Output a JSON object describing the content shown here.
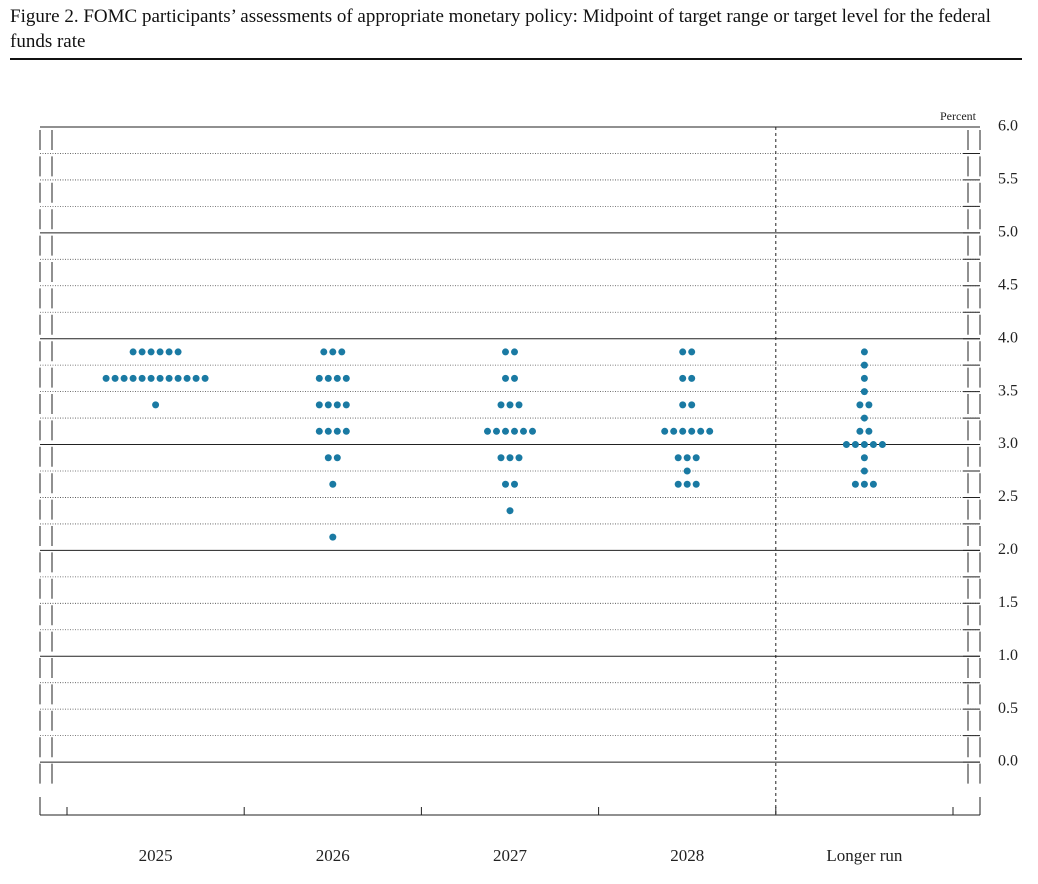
{
  "chart_data": {
    "type": "dot",
    "title": "Figure 2. FOMC participants’ assessments of appropriate monetary policy: Midpoint of target range or target level for the federal funds rate",
    "y_label": "Percent",
    "categories": [
      "2025",
      "2026",
      "2027",
      "2028",
      "Longer run"
    ],
    "values": [
      [
        3.875,
        3.875,
        3.875,
        3.875,
        3.875,
        3.875,
        3.625,
        3.625,
        3.625,
        3.625,
        3.625,
        3.625,
        3.625,
        3.625,
        3.625,
        3.625,
        3.625,
        3.625,
        3.375
      ],
      [
        3.875,
        3.875,
        3.875,
        3.625,
        3.625,
        3.625,
        3.625,
        3.375,
        3.375,
        3.375,
        3.375,
        3.125,
        3.125,
        3.125,
        3.125,
        2.875,
        2.875,
        2.625,
        2.125
      ],
      [
        3.875,
        3.875,
        3.625,
        3.625,
        3.375,
        3.375,
        3.375,
        3.125,
        3.125,
        3.125,
        3.125,
        3.125,
        3.125,
        2.875,
        2.875,
        2.875,
        2.625,
        2.625,
        2.375
      ],
      [
        3.875,
        3.875,
        3.625,
        3.625,
        3.375,
        3.375,
        3.125,
        3.125,
        3.125,
        3.125,
        3.125,
        3.125,
        2.875,
        2.875,
        2.875,
        2.75,
        2.625,
        2.625,
        2.625
      ],
      [
        3.875,
        3.75,
        3.625,
        3.5,
        3.375,
        3.375,
        3.25,
        3.125,
        3.125,
        3.0,
        3.0,
        3.0,
        3.0,
        3.0,
        2.875,
        2.75,
        2.625,
        2.625,
        2.625
      ]
    ],
    "color": "#1a7aa3",
    "ylim": [
      -0.5,
      6.0
    ],
    "yticks": [
      {
        "value": 0,
        "label": "0.0"
      },
      {
        "value": 0.5,
        "label": "0.5"
      },
      {
        "value": 1,
        "label": "1.0"
      },
      {
        "value": 1.5,
        "label": "1.5"
      },
      {
        "value": 2,
        "label": "2.0"
      },
      {
        "value": 2.5,
        "label": "2.5"
      },
      {
        "value": 3,
        "label": "3.0"
      },
      {
        "value": 3.5,
        "label": "3.5"
      },
      {
        "value": 4,
        "label": "4.0"
      },
      {
        "value": 4.5,
        "label": "4.5"
      },
      {
        "value": 5,
        "label": "5.0"
      },
      {
        "value": 5.5,
        "label": "5.5"
      },
      {
        "value": 6,
        "label": "6.0"
      }
    ],
    "minor_yticks": [
      0.25,
      0.75,
      1.25,
      1.75,
      2.25,
      2.75,
      3.25,
      3.75,
      4.25,
      4.75,
      5.25,
      5.75
    ],
    "grid": true
  }
}
